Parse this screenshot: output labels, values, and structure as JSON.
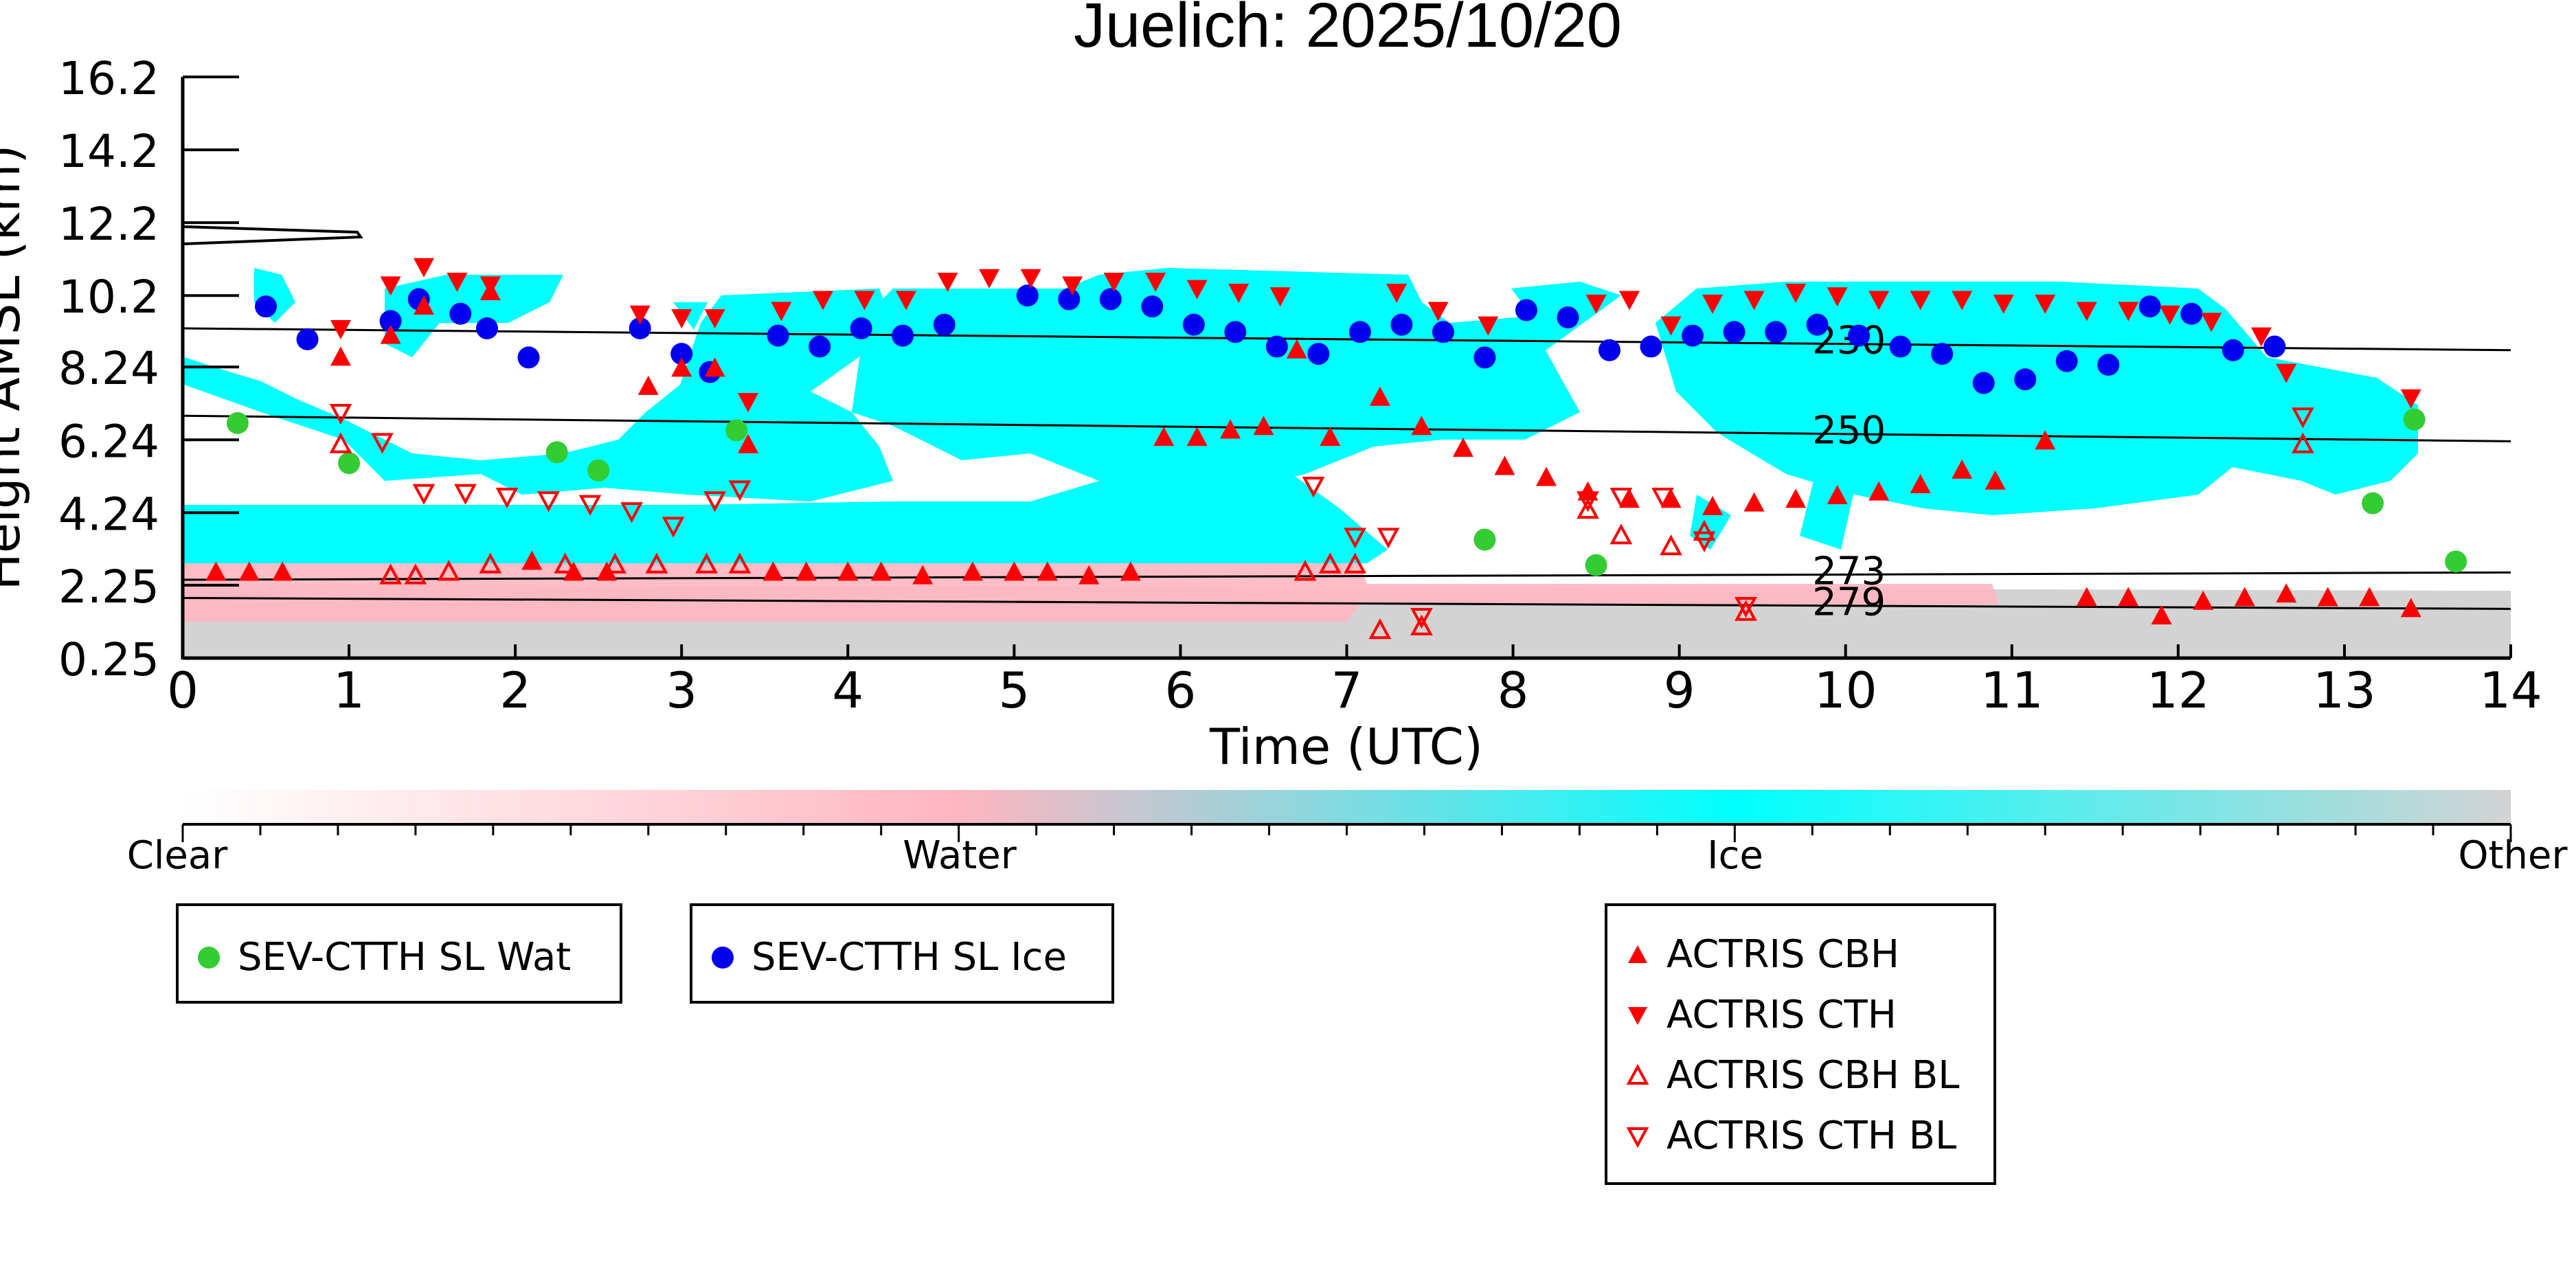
{
  "chart_data": {
    "type": "scatter",
    "title": "Juelich: 2025/10/20",
    "xlabel": "Time (UTC)",
    "ylabel": "Height AMSL (km)",
    "xlim": [
      0,
      14
    ],
    "ylim": [
      0.25,
      16.2
    ],
    "x_ticks": [
      0,
      1,
      2,
      3,
      4,
      5,
      6,
      7,
      8,
      9,
      10,
      11,
      12,
      13,
      14
    ],
    "y_ticks": [
      "0.25",
      "2.25",
      "4.24",
      "6.24",
      "8.24",
      "10.2",
      "12.2",
      "14.2",
      "16.2"
    ],
    "colorbar": {
      "labels": [
        "Clear",
        "Water",
        "Ice",
        "Other"
      ],
      "colors": [
        "#ffffff",
        "#ffb6c1",
        "#00ffff",
        "#d3d3d3"
      ]
    },
    "isotherms": [
      {
        "label": "230",
        "x": [
          0,
          14
        ],
        "y": [
          9.3,
          8.7
        ]
      },
      {
        "label": "250",
        "x": [
          0,
          14
        ],
        "y": [
          6.9,
          6.2
        ]
      },
      {
        "label": "273",
        "x": [
          0,
          14
        ],
        "y": [
          2.4,
          2.6
        ]
      },
      {
        "label": "279",
        "x": [
          0,
          14
        ],
        "y": [
          1.9,
          1.6
        ]
      }
    ],
    "series": [
      {
        "name": "SEV-CTTH SL Wat",
        "color": "#33cc33",
        "marker": "circle",
        "x": [
          0.33,
          1.0,
          2.25,
          2.5,
          3.33,
          7.83,
          8.5,
          13.17,
          13.42,
          13.67
        ],
        "y": [
          6.7,
          5.6,
          5.9,
          5.4,
          6.5,
          3.5,
          2.8,
          4.5,
          6.8,
          2.9
        ]
      },
      {
        "name": "SEV-CTTH SL Ice",
        "color": "#0000ee",
        "marker": "circle",
        "x": [
          0.5,
          0.75,
          1.25,
          1.42,
          1.67,
          1.83,
          2.08,
          2.75,
          3.0,
          3.17,
          3.58,
          3.83,
          4.08,
          4.33,
          4.58,
          5.08,
          5.33,
          5.58,
          5.83,
          6.08,
          6.33,
          6.58,
          6.83,
          7.08,
          7.33,
          7.58,
          7.83,
          8.08,
          8.33,
          8.58,
          8.83,
          9.08,
          9.33,
          9.58,
          9.83,
          10.08,
          10.33,
          10.58,
          10.83,
          11.08,
          11.33,
          11.58,
          11.83,
          12.08,
          12.33,
          12.58
        ],
        "y": [
          9.9,
          9.0,
          9.5,
          10.1,
          9.7,
          9.3,
          8.5,
          9.3,
          8.6,
          8.1,
          9.1,
          8.8,
          9.3,
          9.1,
          9.4,
          10.2,
          10.1,
          10.1,
          9.9,
          9.4,
          9.2,
          8.8,
          8.6,
          9.2,
          9.4,
          9.2,
          8.5,
          9.8,
          9.6,
          8.7,
          8.8,
          9.1,
          9.2,
          9.2,
          9.4,
          9.1,
          8.8,
          8.6,
          7.8,
          7.9,
          8.4,
          8.3,
          9.9,
          9.7,
          8.7,
          8.8
        ]
      },
      {
        "name": "ACTRIS CBH",
        "color": "#ff0000",
        "marker": "triangle-up",
        "x": [
          0.2,
          0.4,
          0.6,
          0.95,
          1.25,
          1.45,
          1.85,
          2.1,
          2.35,
          2.55,
          2.8,
          3.0,
          3.2,
          3.4,
          3.55,
          3.75,
          4.0,
          4.2,
          4.45,
          4.75,
          5.0,
          5.2,
          5.45,
          5.7,
          5.9,
          6.1,
          6.3,
          6.5,
          6.7,
          6.9,
          7.2,
          7.45,
          7.7,
          7.95,
          8.2,
          8.45,
          8.7,
          8.95,
          9.2,
          9.45,
          9.7,
          9.95,
          10.2,
          10.45,
          10.7,
          10.9,
          11.2,
          11.45,
          11.7,
          11.9,
          12.15,
          12.4,
          12.65,
          12.9,
          13.15,
          13.4
        ],
        "y": [
          2.6,
          2.6,
          2.6,
          8.5,
          9.1,
          9.9,
          10.3,
          2.9,
          2.6,
          2.6,
          7.7,
          8.2,
          8.2,
          6.1,
          2.6,
          2.6,
          2.6,
          2.6,
          2.5,
          2.6,
          2.6,
          2.6,
          2.5,
          2.6,
          6.3,
          6.3,
          6.5,
          6.6,
          8.7,
          6.3,
          7.4,
          6.6,
          6.0,
          5.5,
          5.2,
          4.8,
          4.6,
          4.6,
          4.4,
          4.5,
          4.6,
          4.7,
          4.8,
          5.0,
          5.4,
          5.1,
          6.2,
          1.9,
          1.9,
          1.4,
          1.8,
          1.9,
          2.0,
          1.9,
          1.9,
          1.6
        ]
      },
      {
        "name": "ACTRIS CTH",
        "color": "#ff0000",
        "marker": "triangle-down",
        "x": [
          0.95,
          1.25,
          1.45,
          1.65,
          1.85,
          2.75,
          3.0,
          3.2,
          3.4,
          3.6,
          3.85,
          4.1,
          4.35,
          4.6,
          4.85,
          5.1,
          5.35,
          5.6,
          5.85,
          6.1,
          6.35,
          6.6,
          7.3,
          7.55,
          7.85,
          8.5,
          8.7,
          8.95,
          9.2,
          9.45,
          9.7,
          9.95,
          10.2,
          10.45,
          10.7,
          10.95,
          11.2,
          11.45,
          11.7,
          11.95,
          12.2,
          12.5,
          12.65,
          13.4
        ],
        "y": [
          9.3,
          10.5,
          11.0,
          10.6,
          10.5,
          9.7,
          9.6,
          9.6,
          7.3,
          9.8,
          10.1,
          10.1,
          10.1,
          10.6,
          10.7,
          10.7,
          10.5,
          10.6,
          10.6,
          10.4,
          10.3,
          10.2,
          10.3,
          9.8,
          9.4,
          10.0,
          10.1,
          9.4,
          10.0,
          10.1,
          10.3,
          10.2,
          10.1,
          10.1,
          10.1,
          10.0,
          10.0,
          9.8,
          9.8,
          9.7,
          9.5,
          9.1,
          8.1,
          7.4
        ]
      },
      {
        "name": "ACTRIS CBH BL",
        "color": "#ff0000",
        "marker": "triangle-up-open",
        "x": [
          0.95,
          1.25,
          1.4,
          1.6,
          1.85,
          2.3,
          2.6,
          2.85,
          3.15,
          3.35,
          6.75,
          6.9,
          7.05,
          7.2,
          7.45,
          8.45,
          8.65,
          8.95,
          9.15,
          9.4,
          12.75
        ],
        "y": [
          6.1,
          2.5,
          2.5,
          2.6,
          2.8,
          2.8,
          2.8,
          2.8,
          2.8,
          2.8,
          2.6,
          2.8,
          2.8,
          1.0,
          1.1,
          4.3,
          3.6,
          3.3,
          3.7,
          1.5,
          6.1
        ]
      },
      {
        "name": "ACTRIS CTH BL",
        "color": "#ff0000",
        "marker": "triangle-down-open",
        "x": [
          0.95,
          1.2,
          1.45,
          1.7,
          1.95,
          2.2,
          2.45,
          2.7,
          2.95,
          3.2,
          3.35,
          6.8,
          7.05,
          7.25,
          7.45,
          8.45,
          8.65,
          8.9,
          9.15,
          9.4,
          12.75
        ],
        "y": [
          7.0,
          6.2,
          4.8,
          4.8,
          4.7,
          4.6,
          4.5,
          4.3,
          3.9,
          4.6,
          4.9,
          5.0,
          3.6,
          3.6,
          1.4,
          4.6,
          4.7,
          4.7,
          3.5,
          1.7,
          6.9
        ]
      }
    ],
    "legend": {
      "group1": [
        "SEV-CTTH SL Wat"
      ],
      "group2": [
        "SEV-CTTH SL Ice"
      ],
      "group3": [
        "ACTRIS CBH",
        "ACTRIS CTH",
        "ACTRIS CBH BL",
        "ACTRIS CTH BL"
      ]
    }
  }
}
